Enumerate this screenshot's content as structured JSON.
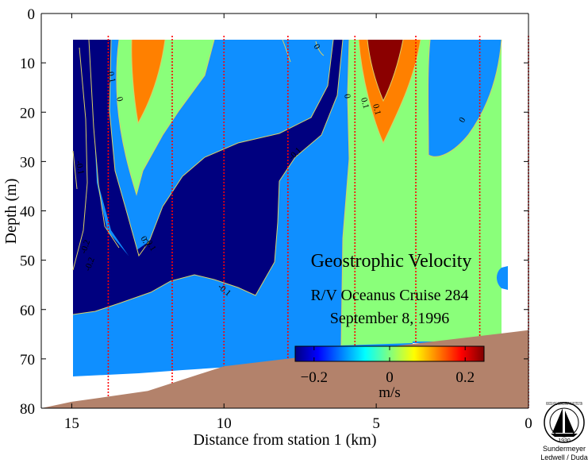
{
  "chart_data": {
    "type": "contour",
    "title": "",
    "xlabel": "Distance from station 1 (km)",
    "ylabel": "Depth (m)",
    "xlim": [
      16,
      0
    ],
    "ylim": [
      80,
      0
    ],
    "xticks": [
      15,
      10,
      5,
      0
    ],
    "yticks": [
      0,
      10,
      20,
      30,
      40,
      50,
      60,
      70,
      80
    ],
    "grid": false,
    "annotations": [
      {
        "role": "title",
        "text": "Geostrophic Velocity"
      },
      {
        "role": "subtitle",
        "text": "R/V Oceanus Cruise 284"
      },
      {
        "role": "date",
        "text": "September 8, 1996"
      }
    ],
    "contour_levels": [
      -0.2,
      -0.1,
      0,
      0.1,
      0.2
    ],
    "contour_labels": [
      "0",
      "0.1",
      "-0.1",
      "-0.2",
      "0.1",
      "0",
      "0.1",
      "0",
      "0",
      "0.1",
      "-0.1",
      "-0.1",
      "-0.2",
      "-0.1"
    ],
    "colorbar": {
      "unit": "m/s",
      "range": [
        -0.25,
        0.25
      ],
      "ticks": [
        -0.2,
        0,
        0.2
      ],
      "tick_labels": [
        "−0.2",
        "0",
        "0.2"
      ]
    },
    "station_lines_km": [
      13.8,
      11.7,
      10.0,
      7.9,
      5.7,
      3.7,
      1.6,
      0.0
    ],
    "bottom_depth_profile": {
      "x_km": [
        16,
        15,
        12.5,
        10,
        0
      ],
      "depth_m": [
        80,
        78.7,
        76.5,
        71.5,
        64.2
      ]
    },
    "colors": {
      "strong_negative": "#00007f",
      "weak_negative": "#0f8fff",
      "near_zero": "#8aff7a",
      "weak_positive": "#ff8000",
      "strong_positive": "#8b0000",
      "bathymetry": "#b3826b",
      "contour_line": "#d9cf66",
      "station_line": "#ff0000"
    }
  },
  "logo": {
    "ring_text": "WOODS HOLE OCEANOGRAPHIC INSTITUTION",
    "year": "1930",
    "credit_line1": "Sundermeyer",
    "credit_line2": "Ledwell / Duda"
  }
}
